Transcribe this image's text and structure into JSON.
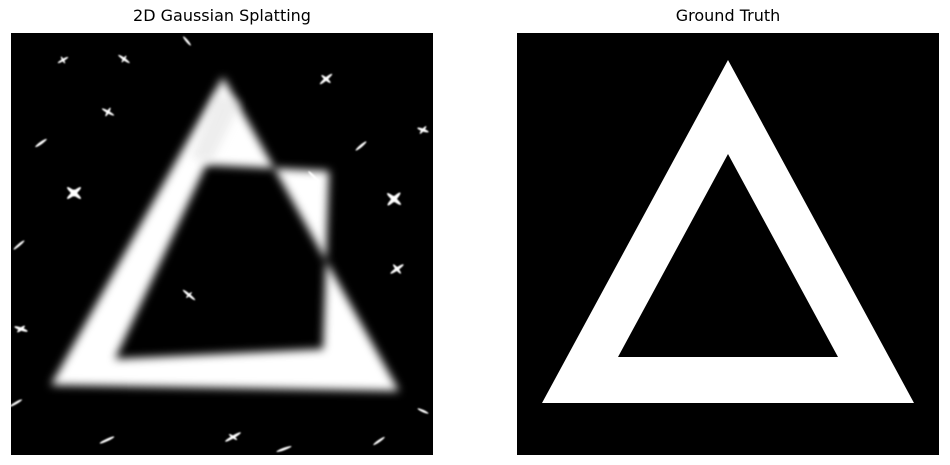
{
  "panels": [
    {
      "title": "2D Gaussian Splatting",
      "background_color": "#000000",
      "shape_color": "#ffffff"
    },
    {
      "title": "Ground Truth",
      "background_color": "#000000",
      "shape_color": "#ffffff"
    }
  ]
}
